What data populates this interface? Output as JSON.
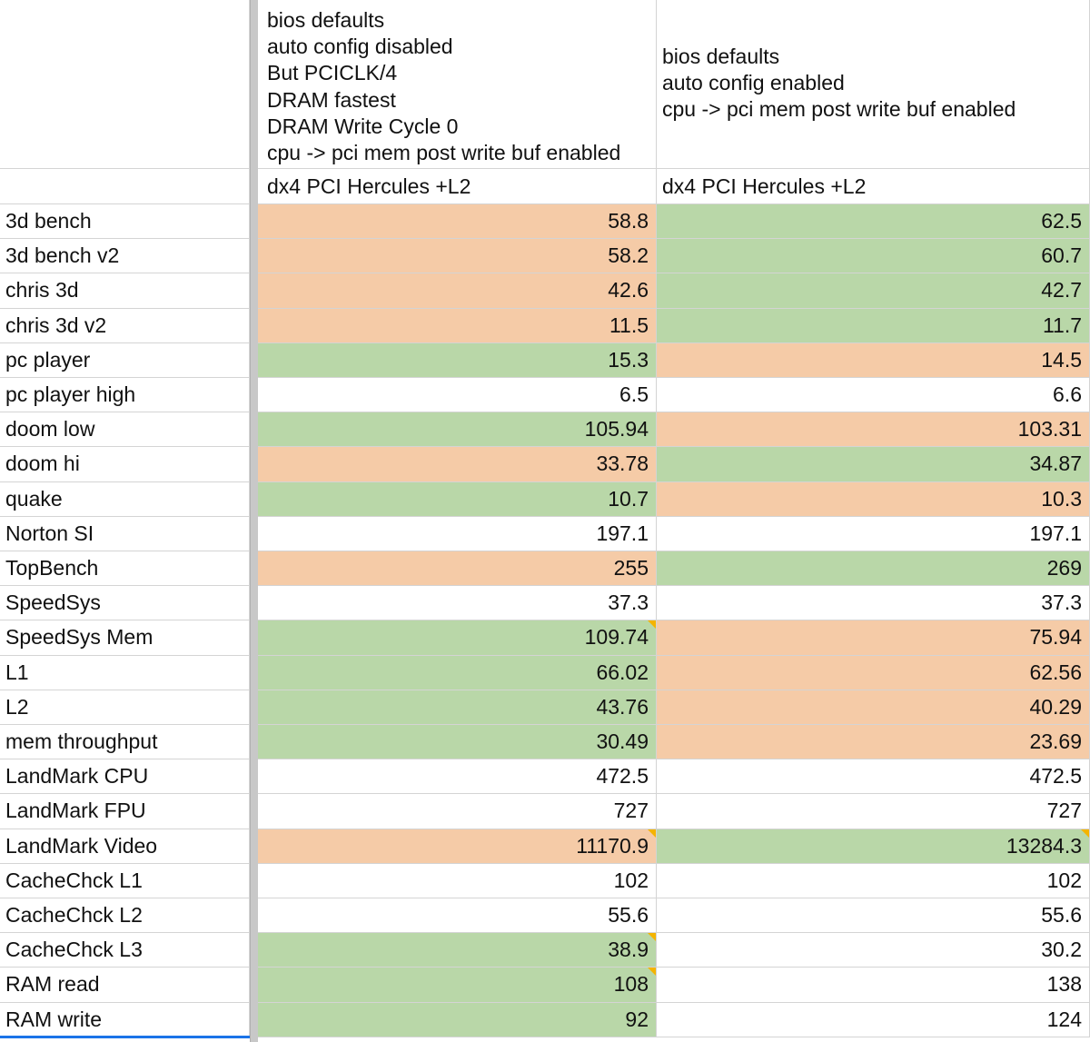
{
  "colors": {
    "better": "#b9d7a8",
    "worse": "#f5cba7",
    "neutral": "#ffffff",
    "gridline": "#d4d4d4",
    "note": "#f4b400"
  },
  "columns": [
    {
      "header_lines": [
        "bios defaults",
        "auto config disabled",
        "But PCICLK/4",
        "DRAM fastest",
        "DRAM Write Cycle 0",
        "cpu -> pci mem post write buf enabled"
      ],
      "subheader": "dx4 PCI Hercules +L2"
    },
    {
      "header_lines": [
        "bios defaults",
        "auto config enabled",
        "cpu -> pci mem post write buf enabled"
      ],
      "subheader": "dx4 PCI Hercules +L2"
    }
  ],
  "rows": [
    {
      "label": "3d bench",
      "a": "58.8",
      "b": "62.5",
      "ca": "worse",
      "cb": "better"
    },
    {
      "label": "3d bench v2",
      "a": "58.2",
      "b": "60.7",
      "ca": "worse",
      "cb": "better"
    },
    {
      "label": "chris 3d",
      "a": "42.6",
      "b": "42.7",
      "ca": "worse",
      "cb": "better"
    },
    {
      "label": "chris 3d v2",
      "a": "11.5",
      "b": "11.7",
      "ca": "worse",
      "cb": "better"
    },
    {
      "label": "pc player",
      "a": "15.3",
      "b": "14.5",
      "ca": "better",
      "cb": "worse"
    },
    {
      "label": "pc player high",
      "a": "6.5",
      "b": "6.6",
      "ca": "neutral",
      "cb": "neutral"
    },
    {
      "label": "doom low",
      "a": "105.94",
      "b": "103.31",
      "ca": "better",
      "cb": "worse"
    },
    {
      "label": "doom hi",
      "a": "33.78",
      "b": "34.87",
      "ca": "worse",
      "cb": "better"
    },
    {
      "label": "quake",
      "a": "10.7",
      "b": "10.3",
      "ca": "better",
      "cb": "worse"
    },
    {
      "label": "Norton SI",
      "a": "197.1",
      "b": "197.1",
      "ca": "neutral",
      "cb": "neutral"
    },
    {
      "label": "TopBench",
      "a": "255",
      "b": "269",
      "ca": "worse",
      "cb": "better"
    },
    {
      "label": "SpeedSys",
      "a": "37.3",
      "b": "37.3",
      "ca": "neutral",
      "cb": "neutral"
    },
    {
      "label": "SpeedSys Mem",
      "a": "109.74",
      "b": "75.94",
      "ca": "better",
      "cb": "worse",
      "note_a": true
    },
    {
      "label": "L1",
      "a": "66.02",
      "b": "62.56",
      "ca": "better",
      "cb": "worse"
    },
    {
      "label": "L2",
      "a": "43.76",
      "b": "40.29",
      "ca": "better",
      "cb": "worse"
    },
    {
      "label": "mem throughput",
      "a": "30.49",
      "b": "23.69",
      "ca": "better",
      "cb": "worse"
    },
    {
      "label": "LandMark CPU",
      "a": "472.5",
      "b": "472.5",
      "ca": "neutral",
      "cb": "neutral"
    },
    {
      "label": "LandMark FPU",
      "a": "727",
      "b": "727",
      "ca": "neutral",
      "cb": "neutral"
    },
    {
      "label": "LandMark Video",
      "a": "11170.9",
      "b": "13284.3",
      "ca": "worse",
      "cb": "better",
      "note_a": true,
      "note_b": true
    },
    {
      "label": "CacheChck L1",
      "a": "102",
      "b": "102",
      "ca": "neutral",
      "cb": "neutral"
    },
    {
      "label": "CacheChck L2",
      "a": "55.6",
      "b": "55.6",
      "ca": "neutral",
      "cb": "neutral"
    },
    {
      "label": "CacheChck L3",
      "a": "38.9",
      "b": "30.2",
      "ca": "better",
      "cb": "neutral",
      "note_a": true
    },
    {
      "label": "RAM read",
      "a": "108",
      "b": "138",
      "ca": "better",
      "cb": "neutral",
      "note_a": true
    },
    {
      "label": "RAM write",
      "a": "92",
      "b": "124",
      "ca": "better",
      "cb": "neutral"
    }
  ]
}
